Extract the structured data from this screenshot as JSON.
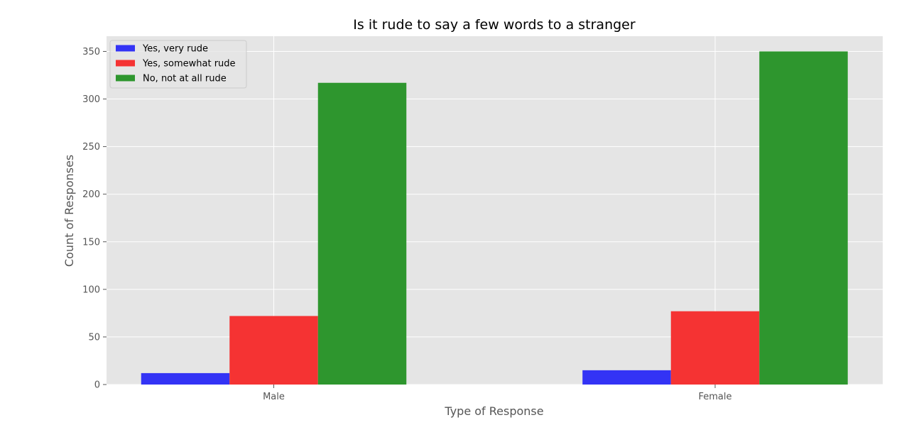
{
  "chart_data": {
    "type": "bar",
    "title": "Is it rude to say a few words to a stranger",
    "xlabel": "Type of Response",
    "ylabel": "Count of Responses",
    "categories": [
      "Male",
      "Female"
    ],
    "series": [
      {
        "name": "Yes, very rude",
        "values": [
          12,
          15
        ],
        "color": "#3333f5"
      },
      {
        "name": "Yes, somewhat rude",
        "values": [
          72,
          77
        ],
        "color": "#f53333"
      },
      {
        "name": "No, not at all rude",
        "values": [
          317,
          350
        ],
        "color": "#2e962e"
      }
    ],
    "ylim": [
      0,
      366
    ],
    "yticks": [
      0,
      50,
      100,
      150,
      200,
      250,
      300,
      350
    ],
    "grid": true,
    "legend": "top-left",
    "background": "#e5e5e5"
  }
}
